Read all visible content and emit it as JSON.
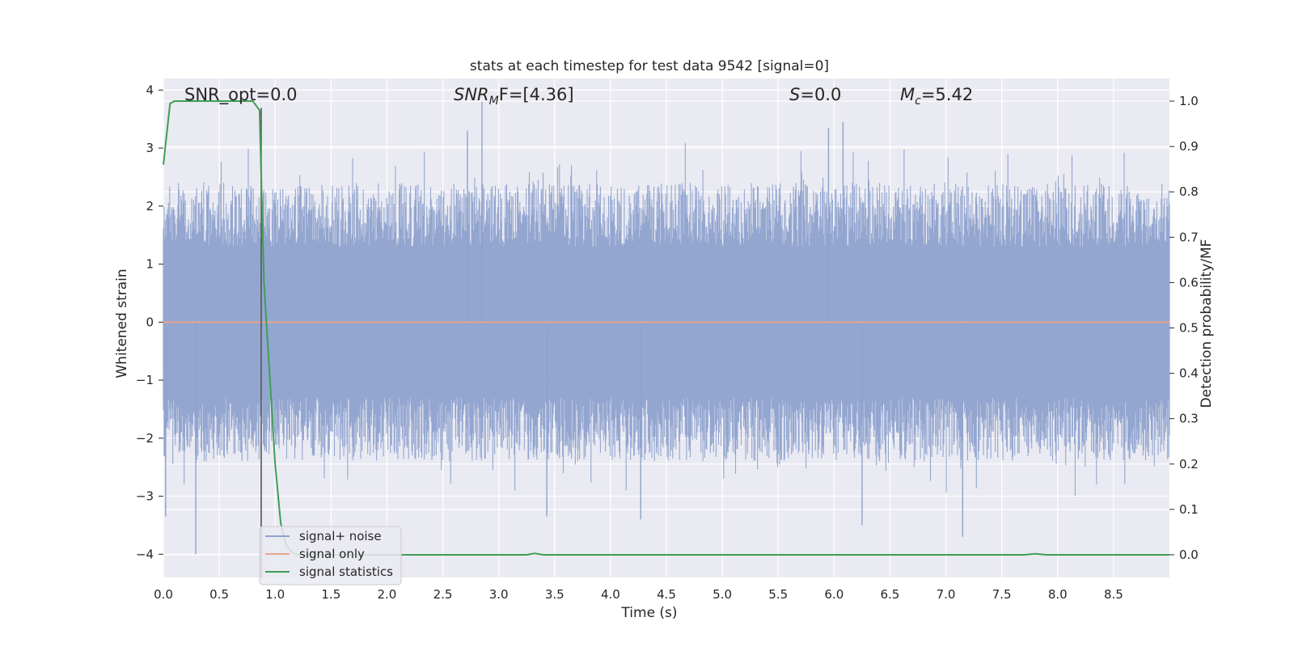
{
  "chart_data": {
    "type": "line",
    "title": "stats at each timestep for test data 9542 [signal=0]",
    "xlabel": "Time (s)",
    "ylabel": "Whitened strain",
    "ylabel_right": "Detection probability/MF",
    "xlim": [
      0,
      9.0
    ],
    "ylim": [
      -4.4,
      4.2
    ],
    "ylim_right": [
      -0.05,
      1.05
    ],
    "x_ticks": [
      "0.0",
      "0.5",
      "1.0",
      "1.5",
      "2.0",
      "2.5",
      "3.0",
      "3.5",
      "4.0",
      "4.5",
      "5.0",
      "5.5",
      "6.0",
      "6.5",
      "7.0",
      "7.5",
      "8.0",
      "8.5"
    ],
    "y_ticks": [
      "4",
      "3",
      "2",
      "1",
      "0",
      "−1",
      "−2",
      "−3",
      "−4"
    ],
    "y_right_ticks": [
      "1.0",
      "0.9",
      "0.8",
      "0.7",
      "0.6",
      "0.5",
      "0.4",
      "0.3",
      "0.2",
      "0.1",
      "0.0"
    ],
    "grid": true,
    "legend_position": "lower-left",
    "vertical_marker_x": 0.875,
    "annotations": {
      "snr_opt": "SNR_opt=0.0",
      "snr_mf_main": "SNR",
      "snr_mf_sub": "M",
      "snr_mf_tail": "F=[4.36]",
      "s_main": "S",
      "s_tail": "=0.0",
      "mc_main": "M",
      "mc_sub": "c",
      "mc_tail": "=5.42"
    },
    "series": [
      {
        "name": "signal+ noise",
        "color": "#8ea2cd",
        "description": "whitened strain noise, amplitude roughly within ±2.5 with spikes to about ±4",
        "noise_extremes": [
          {
            "x": 0.29,
            "y": -4.0
          },
          {
            "x": 0.02,
            "y": -3.35
          },
          {
            "x": 2.85,
            "y": 3.8
          },
          {
            "x": 2.72,
            "y": 3.3
          },
          {
            "x": 5.95,
            "y": 3.35
          },
          {
            "x": 6.08,
            "y": 3.45
          },
          {
            "x": 6.25,
            "y": -3.5
          },
          {
            "x": 7.15,
            "y": -3.7
          },
          {
            "x": 4.27,
            "y": -3.4
          },
          {
            "x": 3.43,
            "y": -3.35
          }
        ]
      },
      {
        "name": "signal only",
        "color": "#e8a58c",
        "x": [
          0,
          9.0
        ],
        "y": [
          0,
          0
        ]
      },
      {
        "name": "signal statistics",
        "color": "#3f9e55",
        "axis": "right",
        "x": [
          0.0,
          0.06,
          0.1,
          0.2,
          0.3,
          0.4,
          0.5,
          0.6,
          0.7,
          0.8,
          0.86,
          0.9,
          0.95,
          1.0,
          1.05,
          1.1,
          1.15,
          1.2,
          1.5,
          2.0,
          3.0,
          3.25,
          3.32,
          3.4,
          4.0,
          5.0,
          6.0,
          7.0,
          7.7,
          7.8,
          7.9,
          8.5,
          9.0
        ],
        "y": [
          0.86,
          0.995,
          1.0,
          1.0,
          1.0,
          1.0,
          1.0,
          1.0,
          1.0,
          1.0,
          0.98,
          0.6,
          0.4,
          0.2,
          0.07,
          0.02,
          0.005,
          0.0,
          0.0,
          0.0,
          0.0,
          0.0,
          0.003,
          0.0,
          0.0,
          0.0,
          0.0,
          0.0,
          0.0,
          0.002,
          0.0,
          0.0,
          0.0
        ]
      }
    ]
  }
}
